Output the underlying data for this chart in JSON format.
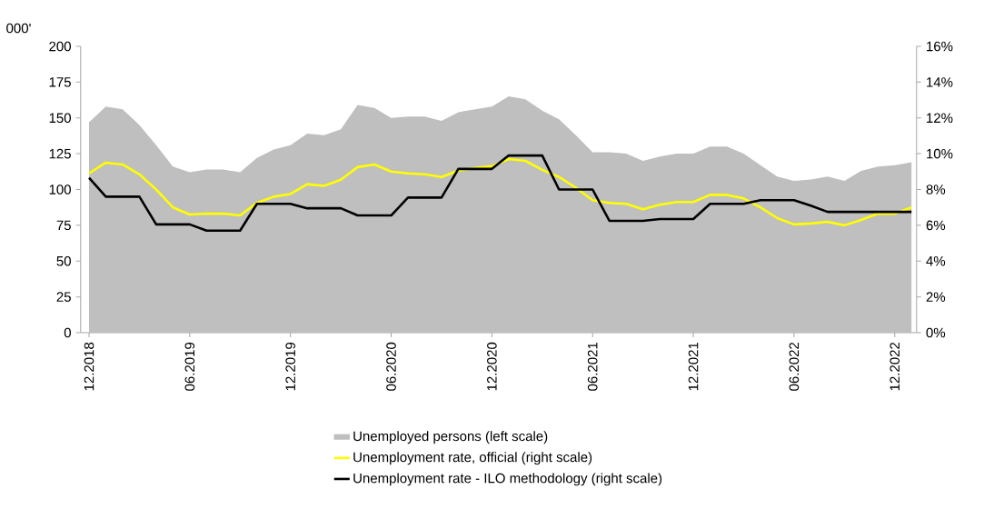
{
  "chart_data": {
    "type": "line",
    "ylabel": "000'",
    "categories": [
      "12.2018",
      null,
      null,
      null,
      null,
      null,
      "06.2019",
      null,
      null,
      null,
      null,
      null,
      "12.2019",
      null,
      null,
      null,
      null,
      null,
      "06.2020",
      null,
      null,
      null,
      null,
      null,
      "12.2020",
      null,
      null,
      null,
      null,
      null,
      "06.2021",
      null,
      null,
      null,
      null,
      null,
      "12.2021",
      null,
      null,
      null,
      null,
      null,
      "06.2022",
      null,
      null,
      null,
      null,
      null,
      "12.2022",
      null
    ],
    "series": [
      {
        "name": "Unemployed persons (left scale)",
        "type": "area",
        "color": "#bfbfbf",
        "values": [
          147,
          158,
          156,
          145,
          131,
          116,
          112,
          114,
          114,
          112,
          122,
          128,
          131,
          139,
          138,
          142,
          159,
          157,
          150,
          151,
          151,
          148,
          154,
          156,
          158,
          165,
          163,
          155,
          149,
          138,
          126,
          126,
          125,
          120,
          123,
          125,
          125,
          130,
          130,
          125,
          117,
          109,
          106,
          107,
          109,
          106,
          113,
          116,
          117,
          119
        ]
      },
      {
        "name": "Unemployment rate, official (right scale)",
        "axis": "y2",
        "color": "#ffff00",
        "values": [
          8.9,
          9.5,
          9.4,
          8.85,
          8.0,
          7.0,
          6.6,
          6.65,
          6.65,
          6.55,
          7.25,
          7.6,
          7.75,
          8.3,
          8.2,
          8.55,
          9.25,
          9.4,
          9.0,
          8.9,
          8.85,
          8.7,
          9.05,
          9.2,
          9.3,
          9.7,
          9.6,
          9.1,
          8.7,
          8.1,
          7.4,
          7.25,
          7.2,
          6.9,
          7.15,
          7.3,
          7.3,
          7.7,
          7.7,
          7.5,
          7.0,
          6.4,
          6.05,
          6.1,
          6.2,
          6.0,
          6.3,
          6.65,
          6.65,
          7.0
        ]
      },
      {
        "name": "Unemployment rate - ILO methodology (right scale)",
        "axis": "y2",
        "color": "#000000",
        "values": [
          8.65,
          7.6,
          7.6,
          7.6,
          6.05,
          6.05,
          6.05,
          5.7,
          5.7,
          5.7,
          7.2,
          7.2,
          7.2,
          6.95,
          6.95,
          6.95,
          6.55,
          6.55,
          6.55,
          7.55,
          7.55,
          7.55,
          9.15,
          9.15,
          9.15,
          9.9,
          9.9,
          9.9,
          8.0,
          8.0,
          8.0,
          6.25,
          6.25,
          6.25,
          6.35,
          6.35,
          6.35,
          7.2,
          7.2,
          7.2,
          7.4,
          7.4,
          7.4,
          7.1,
          6.75,
          6.75,
          6.75,
          6.75,
          6.75,
          6.75
        ]
      }
    ],
    "ylim": [
      0,
      200
    ],
    "yticks": [
      0,
      25,
      50,
      75,
      100,
      125,
      150,
      175,
      200
    ],
    "y2lim": [
      0,
      16
    ],
    "y2ticks": [
      {
        "value": 0,
        "label": "0%"
      },
      {
        "value": 2,
        "label": "2%"
      },
      {
        "value": 4,
        "label": "4%"
      },
      {
        "value": 6,
        "label": "6%"
      },
      {
        "value": 8,
        "label": "8%"
      },
      {
        "value": 10,
        "label": "10%"
      },
      {
        "value": 12,
        "label": "12%"
      },
      {
        "value": 14,
        "label": "14%"
      },
      {
        "value": 16,
        "label": "16%"
      }
    ],
    "legend": "bottom",
    "marker": "none",
    "line_style": "solid"
  }
}
